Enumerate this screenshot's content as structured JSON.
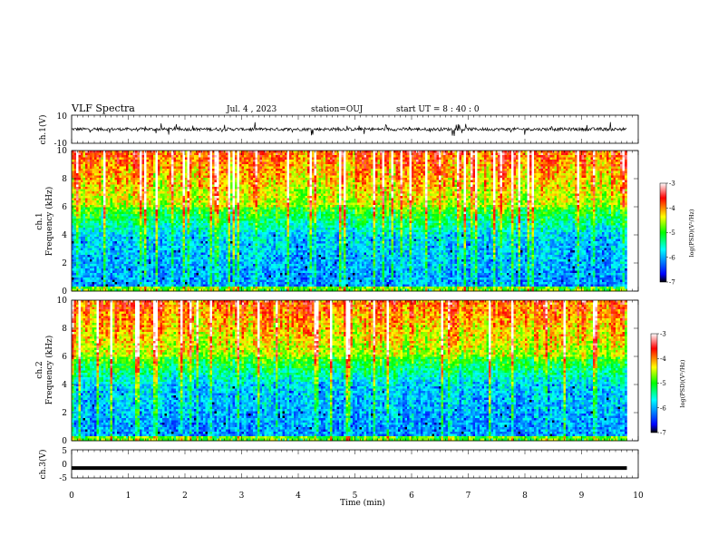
{
  "header": {
    "title": "VLF Spectra",
    "date": "Jul. 4 , 2023",
    "station": "station=OUJ",
    "start_ut": "start UT = 8 : 40 : 0"
  },
  "chart_data": [
    {
      "type": "line",
      "name": "ch1-waveform",
      "ylabel": "ch.1(V)",
      "ylim": [
        -10,
        10
      ],
      "y_tick_labels": [
        "10",
        "-10"
      ],
      "xlim": [
        0,
        10
      ],
      "data_end_min": 9.8,
      "baseline": 0,
      "amplitude_range": [
        -4,
        4
      ]
    },
    {
      "type": "heatmap",
      "name": "ch1-spectrogram",
      "ylabel": "ch.1 Frequency (kHz)",
      "ylabel_lines": [
        "ch.1",
        "Frequency (kHz)"
      ],
      "ylim": [
        0,
        10
      ],
      "y_tick_labels": [
        "0",
        "2",
        "4",
        "6",
        "8",
        "10"
      ],
      "xlim": [
        0,
        10
      ],
      "data_end_min": 9.8,
      "colorbar": {
        "label": "log(PSD)(V²/Hz)",
        "range": [
          -7,
          -3
        ],
        "tick_labels": [
          "-3",
          "-4",
          "-5",
          "-6",
          "-7"
        ],
        "colors": [
          "#000000",
          "#0000ff",
          "#00ffff",
          "#00ff00",
          "#ffff00",
          "#ff0000",
          "#ffffff"
        ]
      },
      "description_levels": {
        "low_freq_kHz": [
          0,
          4
        ],
        "high_freq_kHz": [
          6,
          10
        ]
      }
    },
    {
      "type": "heatmap",
      "name": "ch2-spectrogram",
      "ylabel": "ch.2 Frequency (kHz)",
      "ylabel_lines": [
        "ch.2",
        "Frequency (kHz)"
      ],
      "ylim": [
        0,
        10
      ],
      "y_tick_labels": [
        "0",
        "2",
        "4",
        "6",
        "8",
        "10"
      ],
      "xlim": [
        0,
        10
      ],
      "data_end_min": 9.8,
      "colorbar": {
        "label": "log(PSD)(V²/Hz)",
        "range": [
          -7,
          -3
        ],
        "tick_labels": [
          "-3",
          "-4",
          "-5",
          "-6",
          "-7"
        ],
        "colors": [
          "#000000",
          "#0000ff",
          "#00ffff",
          "#00ff00",
          "#ffff00",
          "#ff0000",
          "#ffffff"
        ]
      }
    },
    {
      "type": "line",
      "name": "ch3-waveform",
      "ylabel": "ch.3(V)",
      "ylim": [
        -5,
        5
      ],
      "y_tick_labels": [
        "5",
        "0",
        "-5"
      ],
      "xlim": [
        0,
        10
      ],
      "data_end_min": 9.8,
      "constant_value": -1.5,
      "xlabel": "Time (min)",
      "x_tick_labels": [
        "0",
        "1",
        "2",
        "3",
        "4",
        "5",
        "6",
        "7",
        "8",
        "9",
        "10"
      ]
    }
  ]
}
